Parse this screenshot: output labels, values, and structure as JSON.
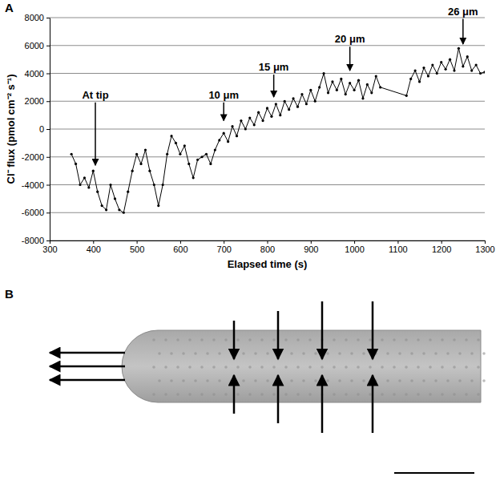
{
  "chart_data": {
    "type": "line",
    "panel_label": "A",
    "xlabel": "Elapsed time (s)",
    "ylabel": "Cl⁻ flux (pmol cm⁻² s⁻¹)",
    "x": [
      350,
      360,
      370,
      380,
      390,
      400,
      410,
      420,
      430,
      440,
      450,
      460,
      470,
      480,
      490,
      500,
      510,
      520,
      530,
      540,
      550,
      560,
      570,
      580,
      590,
      600,
      610,
      620,
      630,
      640,
      650,
      660,
      670,
      680,
      690,
      700,
      710,
      720,
      730,
      740,
      750,
      760,
      770,
      780,
      790,
      800,
      810,
      820,
      830,
      840,
      850,
      860,
      870,
      880,
      890,
      900,
      910,
      920,
      930,
      940,
      950,
      960,
      970,
      980,
      990,
      1000,
      1010,
      1020,
      1030,
      1040,
      1050,
      1060,
      1120,
      1130,
      1140,
      1150,
      1160,
      1170,
      1180,
      1190,
      1200,
      1210,
      1220,
      1230,
      1240,
      1250,
      1260,
      1270,
      1280,
      1290,
      1300
    ],
    "series": [
      {
        "color": "#000000",
        "marker": "circle",
        "values": [
          -1800,
          -2500,
          -4000,
          -3500,
          -4200,
          -3000,
          -4500,
          -5500,
          -5800,
          -4000,
          -5000,
          -5800,
          -6000,
          -4500,
          -3000,
          -1800,
          -2500,
          -1500,
          -3000,
          -4000,
          -5500,
          -4000,
          -1800,
          -500,
          -1000,
          -1800,
          -1200,
          -2500,
          -3500,
          -2200,
          -2000,
          -1800,
          -2500,
          -1500,
          -800,
          -300,
          -900,
          200,
          -500,
          600,
          0,
          800,
          300,
          1200,
          600,
          1500,
          900,
          1800,
          1000,
          2000,
          1400,
          2200,
          1600,
          2500,
          1800,
          2800,
          2000,
          3000,
          4000,
          2600,
          3400,
          2800,
          3600,
          2500,
          3300,
          2800,
          3500,
          2200,
          3200,
          2600,
          3800,
          3000,
          2400,
          3600,
          4200,
          3400,
          4400,
          3800,
          4600,
          4000,
          4800,
          4300,
          5000,
          4200,
          5800,
          4500,
          5200,
          4200,
          4600,
          4000,
          4100
        ]
      }
    ],
    "xlim": [
      300,
      1300
    ],
    "xticks": [
      300,
      400,
      500,
      600,
      700,
      800,
      900,
      1000,
      1100,
      1200,
      1300
    ],
    "ylim": [
      -8000,
      8000
    ],
    "yticks": [
      -8000,
      -6000,
      -4000,
      -2000,
      0,
      2000,
      4000,
      6000,
      8000
    ],
    "grid": true,
    "annotations": [
      {
        "text": "At tip",
        "x": 405,
        "y": 2200,
        "y_end": -2600
      },
      {
        "text": "10 μm",
        "x": 700,
        "y": 2200,
        "y_end": 600
      },
      {
        "text": "15 μm",
        "x": 815,
        "y": 4200,
        "y_end": 2300
      },
      {
        "text": "20 μm",
        "x": 990,
        "y": 6200,
        "y_end": 4200
      },
      {
        "text": "26 μm",
        "x": 1250,
        "y": 8200,
        "y_end": 6100
      }
    ]
  },
  "panel_b": {
    "label": "B"
  }
}
